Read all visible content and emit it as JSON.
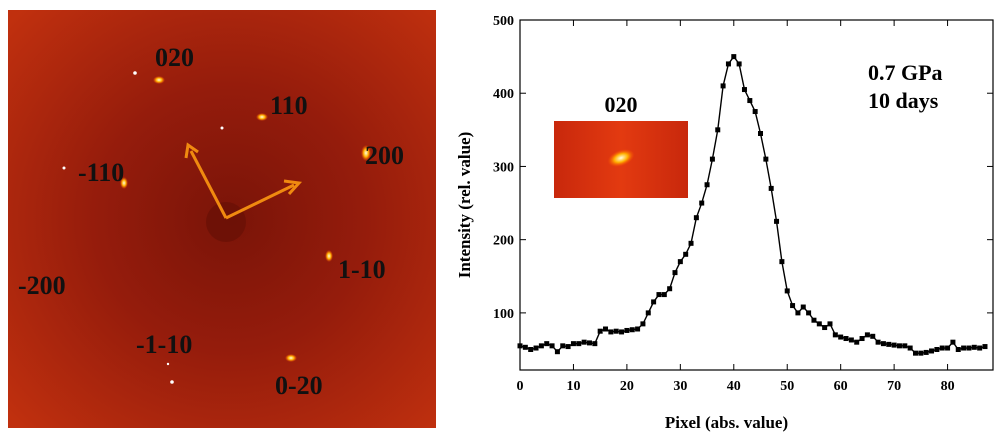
{
  "diffraction_image": {
    "labels": [
      "020",
      "110",
      "200",
      "-110",
      "1-10",
      "-200",
      "-1-10",
      "0-20"
    ]
  },
  "chart_data": {
    "type": "line",
    "annotations": [
      "0.7 GPa",
      "10 days"
    ],
    "inset_label": "020",
    "x_label": "Pixel (abs. value)",
    "y_label": "Intensity (rel. value)",
    "color": "#000000",
    "x": [
      0,
      1,
      2,
      3,
      4,
      5,
      6,
      7,
      8,
      9,
      10,
      11,
      12,
      13,
      14,
      15,
      16,
      17,
      18,
      19,
      20,
      21,
      22,
      23,
      24,
      25,
      26,
      27,
      28,
      29,
      30,
      31,
      32,
      33,
      34,
      35,
      36,
      37,
      38,
      39,
      40,
      41,
      42,
      43,
      44,
      45,
      46,
      47,
      48,
      49,
      50,
      51,
      52,
      53,
      54,
      55,
      56,
      57,
      58,
      59,
      60,
      61,
      62,
      63,
      64,
      65,
      66,
      67,
      68,
      69,
      70,
      71,
      72,
      73,
      74,
      75,
      76,
      77,
      78,
      79,
      80,
      81,
      82,
      83,
      84,
      85,
      86,
      87
    ],
    "values": [
      55,
      53,
      50,
      52,
      55,
      58,
      55,
      47,
      55,
      54,
      58,
      58,
      60,
      59,
      58,
      75,
      78,
      74,
      75,
      74,
      76,
      77,
      78,
      85,
      100,
      115,
      125,
      125,
      133,
      155,
      170,
      180,
      195,
      230,
      250,
      275,
      310,
      350,
      410,
      440,
      450,
      440,
      405,
      390,
      375,
      345,
      310,
      270,
      225,
      170,
      130,
      110,
      100,
      108,
      100,
      90,
      85,
      80,
      85,
      70,
      67,
      65,
      63,
      60,
      65,
      70,
      68,
      60,
      58,
      57,
      56,
      55,
      55,
      52,
      45,
      45,
      46,
      48,
      50,
      52,
      52,
      60,
      50,
      52,
      52,
      53,
      52,
      54
    ],
    "xlim": [
      0,
      88.5
    ],
    "ylim": [
      22,
      500
    ],
    "xticks": [
      0,
      10,
      20,
      30,
      40,
      50,
      60,
      70,
      80
    ],
    "yticks": [
      100,
      200,
      300,
      400,
      500
    ]
  }
}
